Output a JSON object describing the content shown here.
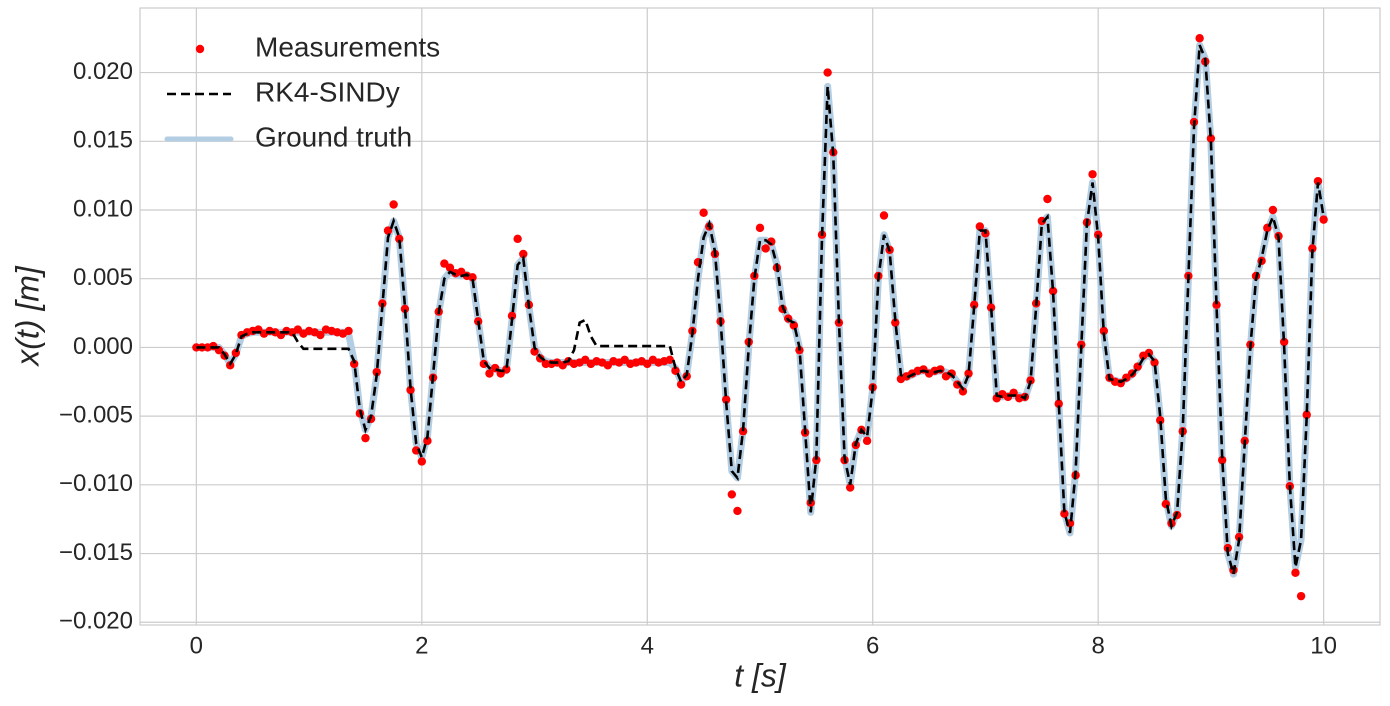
{
  "chart_data": {
    "type": "line",
    "xlabel": "t [s]",
    "ylabel": "x(t) [m]",
    "xlim": [
      -0.5,
      10.5
    ],
    "ylim": [
      -0.0202,
      0.0247
    ],
    "xticks": [
      0,
      2,
      4,
      6,
      8,
      10
    ],
    "yticks": [
      {
        "value": -0.02,
        "label": "−0.020"
      },
      {
        "value": -0.015,
        "label": "−0.015"
      },
      {
        "value": -0.01,
        "label": "−0.010"
      },
      {
        "value": -0.005,
        "label": "−0.005"
      },
      {
        "value": 0,
        "label": "0.000"
      },
      {
        "value": 0.005,
        "label": "0.005"
      },
      {
        "value": 0.01,
        "label": "0.010"
      },
      {
        "value": 0.015,
        "label": "0.015"
      },
      {
        "value": 0.02,
        "label": "0.020"
      }
    ],
    "grid": true,
    "legend": "upper left",
    "x": [
      0,
      0.05,
      0.1,
      0.15,
      0.2,
      0.25,
      0.3,
      0.35,
      0.4,
      0.45,
      0.5,
      0.55,
      0.6,
      0.65,
      0.7,
      0.75,
      0.8,
      0.85,
      0.9,
      0.95,
      1,
      1.05,
      1.1,
      1.15,
      1.2,
      1.25,
      1.3,
      1.35,
      1.4,
      1.45,
      1.5,
      1.55,
      1.6,
      1.65,
      1.7,
      1.75,
      1.8,
      1.85,
      1.9,
      1.95,
      2,
      2.05,
      2.1,
      2.15,
      2.2,
      2.25,
      2.3,
      2.35,
      2.4,
      2.45,
      2.5,
      2.55,
      2.6,
      2.65,
      2.7,
      2.75,
      2.8,
      2.85,
      2.9,
      2.95,
      3,
      3.05,
      3.1,
      3.15,
      3.2,
      3.25,
      3.3,
      3.35,
      3.4,
      3.45,
      3.5,
      3.55,
      3.6,
      3.65,
      3.7,
      3.75,
      3.8,
      3.85,
      3.9,
      3.95,
      4,
      4.05,
      4.1,
      4.15,
      4.2,
      4.25,
      4.3,
      4.35,
      4.4,
      4.45,
      4.5,
      4.55,
      4.6,
      4.65,
      4.7,
      4.75,
      4.8,
      4.85,
      4.9,
      4.95,
      5,
      5.05,
      5.1,
      5.15,
      5.2,
      5.25,
      5.3,
      5.35,
      5.4,
      5.45,
      5.5,
      5.55,
      5.6,
      5.65,
      5.7,
      5.75,
      5.8,
      5.85,
      5.9,
      5.95,
      6,
      6.05,
      6.1,
      6.15,
      6.2,
      6.25,
      6.3,
      6.35,
      6.4,
      6.45,
      6.5,
      6.55,
      6.6,
      6.65,
      6.7,
      6.75,
      6.8,
      6.85,
      6.9,
      6.95,
      7,
      7.05,
      7.1,
      7.15,
      7.2,
      7.25,
      7.3,
      7.35,
      7.4,
      7.45,
      7.5,
      7.55,
      7.6,
      7.65,
      7.7,
      7.75,
      7.8,
      7.85,
      7.9,
      7.95,
      8,
      8.05,
      8.1,
      8.15,
      8.2,
      8.25,
      8.3,
      8.35,
      8.4,
      8.45,
      8.5,
      8.55,
      8.6,
      8.65,
      8.7,
      8.75,
      8.8,
      8.85,
      8.9,
      8.95,
      9,
      9.05,
      9.1,
      9.15,
      9.2,
      9.25,
      9.3,
      9.35,
      9.4,
      9.45,
      9.5,
      9.55,
      9.6,
      9.65,
      9.7,
      9.75,
      9.8,
      9.85,
      9.9,
      9.95,
      10
    ],
    "series": [
      {
        "name": "Measurements",
        "kind": "scatter",
        "color": "#ff0000",
        "values": [
          0,
          0,
          0,
          0.0001,
          -0.0002,
          -0.0006,
          -0.0013,
          -0.0004,
          0.0009,
          0.0011,
          0.0012,
          0.0013,
          0.001,
          0.0012,
          0.0011,
          0.0009,
          0.0012,
          0.0011,
          0.0013,
          0.001,
          0.0012,
          0.0011,
          0.0009,
          0.0013,
          0.0012,
          0.0011,
          0.001,
          0.0012,
          -0.0012,
          -0.0048,
          -0.0066,
          -0.0052,
          -0.0018,
          0.0032,
          0.0085,
          0.0104,
          0.0079,
          0.0028,
          -0.0031,
          -0.0075,
          -0.0083,
          -0.0068,
          -0.0022,
          0.0026,
          0.0061,
          0.0058,
          0.0054,
          0.0055,
          0.0052,
          0.0051,
          0.0019,
          -0.0012,
          -0.0019,
          -0.0015,
          -0.0019,
          -0.0016,
          0.0023,
          0.0079,
          0.0068,
          0.0031,
          -0.0003,
          -0.0008,
          -0.0012,
          -0.0012,
          -0.0011,
          -0.0013,
          -0.001,
          -0.0012,
          -0.0011,
          -0.0009,
          -0.0012,
          -0.001,
          -0.0011,
          -0.0013,
          -0.001,
          -0.0011,
          -0.0009,
          -0.0012,
          -0.0011,
          -0.001,
          -0.0012,
          -0.0009,
          -0.0011,
          -0.001,
          -0.0009,
          -0.0017,
          -0.0027,
          -0.0021,
          0.0012,
          0.0062,
          0.0098,
          0.0088,
          0.0068,
          0.0019,
          -0.0038,
          -0.0107,
          -0.0119,
          -0.0061,
          0.0004,
          0.0052,
          0.0087,
          0.0072,
          0.0077,
          0.0058,
          0.0028,
          0.0021,
          0.0016,
          -0.0002,
          -0.0062,
          -0.0113,
          -0.0082,
          0.0082,
          0.02,
          0.0142,
          0.0018,
          -0.0082,
          -0.0102,
          -0.0071,
          -0.006,
          -0.0068,
          -0.0029,
          0.0052,
          0.0096,
          0.0071,
          0.0018,
          -0.0023,
          -0.0021,
          -0.0019,
          -0.0017,
          -0.0016,
          -0.0019,
          -0.0017,
          -0.0016,
          -0.0021,
          -0.0019,
          -0.0027,
          -0.0032,
          -0.0019,
          0.0031,
          0.0088,
          0.0083,
          0.0029,
          -0.0037,
          -0.0034,
          -0.0036,
          -0.0033,
          -0.0037,
          -0.0036,
          -0.0024,
          0.0032,
          0.0092,
          0.0108,
          0.0041,
          -0.0041,
          -0.0121,
          -0.0128,
          -0.0093,
          0.0002,
          0.0091,
          0.0126,
          0.0082,
          0.0012,
          -0.0022,
          -0.0025,
          -0.0026,
          -0.0022,
          -0.0019,
          -0.0014,
          -0.0006,
          -0.0004,
          -0.0011,
          -0.0053,
          -0.0114,
          -0.0128,
          -0.0122,
          -0.0061,
          0.0052,
          0.0164,
          0.0225,
          0.0208,
          0.0152,
          0.0031,
          -0.0082,
          -0.0146,
          -0.0162,
          -0.0138,
          -0.0068,
          0.0002,
          0.0052,
          0.0063,
          0.0087,
          0.01,
          0.0081,
          0.0004,
          -0.0101,
          -0.0164,
          -0.0181,
          -0.0049,
          0.0072,
          0.0121,
          0.0093
        ]
      },
      {
        "name": "RK4-SINDy",
        "kind": "line",
        "linestyle": "dashed",
        "color": "#000000",
        "values": [
          0,
          0,
          0,
          0,
          0,
          -0.0005,
          -0.0012,
          -0.0005,
          0.0008,
          0.001,
          0.0011,
          0.0011,
          0.0011,
          0.0011,
          0.0011,
          0.0011,
          0.0011,
          0.0011,
          0.0004,
          -0.0001,
          -0.0001,
          -0.0001,
          -0.0001,
          -0.0001,
          -0.0001,
          -0.0001,
          -0.0001,
          -0.0001,
          -0.001,
          -0.0045,
          -0.006,
          -0.005,
          -0.002,
          0.003,
          0.008,
          0.0092,
          0.008,
          0.003,
          -0.003,
          -0.007,
          -0.008,
          -0.0065,
          -0.002,
          0.0025,
          0.005,
          0.0055,
          0.0053,
          0.0052,
          0.0053,
          0.005,
          0.002,
          -0.001,
          -0.0015,
          -0.0016,
          -0.0017,
          -0.0017,
          0.002,
          0.006,
          0.0065,
          0.003,
          0,
          -0.0007,
          -0.001,
          -0.0011,
          -0.0011,
          -0.0011,
          -0.001,
          -0.0002,
          0.0018,
          0.002,
          0.0008,
          0.0001,
          0.0001,
          0.0001,
          0.0001,
          0.0001,
          0.0001,
          0.0001,
          0.0001,
          0.0001,
          0.0001,
          0.0001,
          0.0001,
          0.0001,
          0.0001,
          -0.0015,
          -0.0025,
          -0.002,
          0.001,
          0.005,
          0.008,
          0.009,
          0.007,
          0.002,
          -0.004,
          -0.009,
          -0.0095,
          -0.006,
          0,
          0.005,
          0.0078,
          0.0078,
          0.0075,
          0.006,
          0.003,
          0.002,
          0.0018,
          0,
          -0.006,
          -0.012,
          -0.008,
          0.008,
          0.019,
          0.014,
          0.002,
          -0.008,
          -0.01,
          -0.007,
          -0.006,
          -0.0065,
          -0.003,
          0.005,
          0.0082,
          0.007,
          0.002,
          -0.002,
          -0.0022,
          -0.002,
          -0.0018,
          -0.0017,
          -0.0018,
          -0.0018,
          -0.0017,
          -0.0018,
          -0.002,
          -0.0025,
          -0.003,
          -0.002,
          0.003,
          0.0085,
          0.0085,
          0.003,
          -0.0035,
          -0.0036,
          -0.0035,
          -0.0035,
          -0.0035,
          -0.0037,
          -0.0025,
          0.003,
          0.009,
          0.0095,
          0.004,
          -0.004,
          -0.012,
          -0.0135,
          -0.009,
          0,
          0.009,
          0.012,
          0.008,
          0.001,
          -0.0023,
          -0.0024,
          -0.0025,
          -0.0023,
          -0.002,
          -0.0015,
          -0.0008,
          -0.0005,
          -0.001,
          -0.005,
          -0.011,
          -0.013,
          -0.012,
          -0.006,
          0.005,
          0.016,
          0.022,
          0.021,
          0.015,
          0.003,
          -0.008,
          -0.015,
          -0.0165,
          -0.014,
          -0.007,
          0,
          0.005,
          0.0065,
          0.0085,
          0.0095,
          0.008,
          0,
          -0.01,
          -0.016,
          -0.014,
          -0.005,
          0.007,
          0.012,
          0.0095
        ]
      },
      {
        "name": "Ground truth",
        "kind": "line",
        "linestyle": "solid",
        "color": "#b3cde3",
        "values": [
          0,
          0,
          0,
          0,
          0,
          -0.0005,
          -0.0012,
          -0.0005,
          0.0008,
          0.001,
          0.0011,
          0.0011,
          0.0011,
          0.0011,
          0.0011,
          0.0011,
          0.0011,
          0.0011,
          0.0011,
          0.0011,
          0.0011,
          0.0011,
          0.0011,
          0.0011,
          0.0011,
          0.0011,
          0.0011,
          0.001,
          -0.001,
          -0.0045,
          -0.006,
          -0.005,
          -0.002,
          0.003,
          0.008,
          0.0092,
          0.008,
          0.003,
          -0.003,
          -0.007,
          -0.008,
          -0.0065,
          -0.002,
          0.0025,
          0.005,
          0.0055,
          0.0053,
          0.0052,
          0.0053,
          0.005,
          0.002,
          -0.001,
          -0.0015,
          -0.0016,
          -0.0017,
          -0.0017,
          0.002,
          0.006,
          0.0065,
          0.003,
          0,
          -0.0007,
          -0.001,
          -0.0011,
          -0.0011,
          -0.0011,
          -0.0011,
          -0.0011,
          -0.0011,
          -0.0011,
          -0.0011,
          -0.0011,
          -0.0011,
          -0.0011,
          -0.0011,
          -0.0011,
          -0.0011,
          -0.0011,
          -0.0011,
          -0.0011,
          -0.0011,
          -0.0011,
          -0.0011,
          -0.0011,
          -0.0011,
          -0.0015,
          -0.0025,
          -0.002,
          0.001,
          0.005,
          0.008,
          0.009,
          0.007,
          0.002,
          -0.004,
          -0.009,
          -0.0095,
          -0.006,
          0,
          0.005,
          0.0078,
          0.0078,
          0.0075,
          0.006,
          0.003,
          0.002,
          0.0018,
          0,
          -0.006,
          -0.012,
          -0.008,
          0.008,
          0.019,
          0.014,
          0.002,
          -0.008,
          -0.01,
          -0.007,
          -0.006,
          -0.0065,
          -0.003,
          0.005,
          0.0082,
          0.007,
          0.002,
          -0.002,
          -0.0022,
          -0.002,
          -0.0018,
          -0.0017,
          -0.0018,
          -0.0018,
          -0.0017,
          -0.0018,
          -0.002,
          -0.0025,
          -0.003,
          -0.002,
          0.003,
          0.0085,
          0.0085,
          0.003,
          -0.0035,
          -0.0036,
          -0.0035,
          -0.0035,
          -0.0035,
          -0.0037,
          -0.0025,
          0.003,
          0.009,
          0.0095,
          0.004,
          -0.004,
          -0.012,
          -0.0135,
          -0.009,
          0,
          0.009,
          0.012,
          0.008,
          0.001,
          -0.0023,
          -0.0024,
          -0.0025,
          -0.0023,
          -0.002,
          -0.0015,
          -0.0008,
          -0.0005,
          -0.001,
          -0.005,
          -0.011,
          -0.013,
          -0.012,
          -0.006,
          0.005,
          0.016,
          0.022,
          0.021,
          0.015,
          0.003,
          -0.008,
          -0.015,
          -0.0165,
          -0.014,
          -0.007,
          0,
          0.005,
          0.0065,
          0.0085,
          0.0095,
          0.008,
          0,
          -0.01,
          -0.016,
          -0.014,
          -0.005,
          0.007,
          0.012,
          0.0095
        ]
      }
    ]
  }
}
